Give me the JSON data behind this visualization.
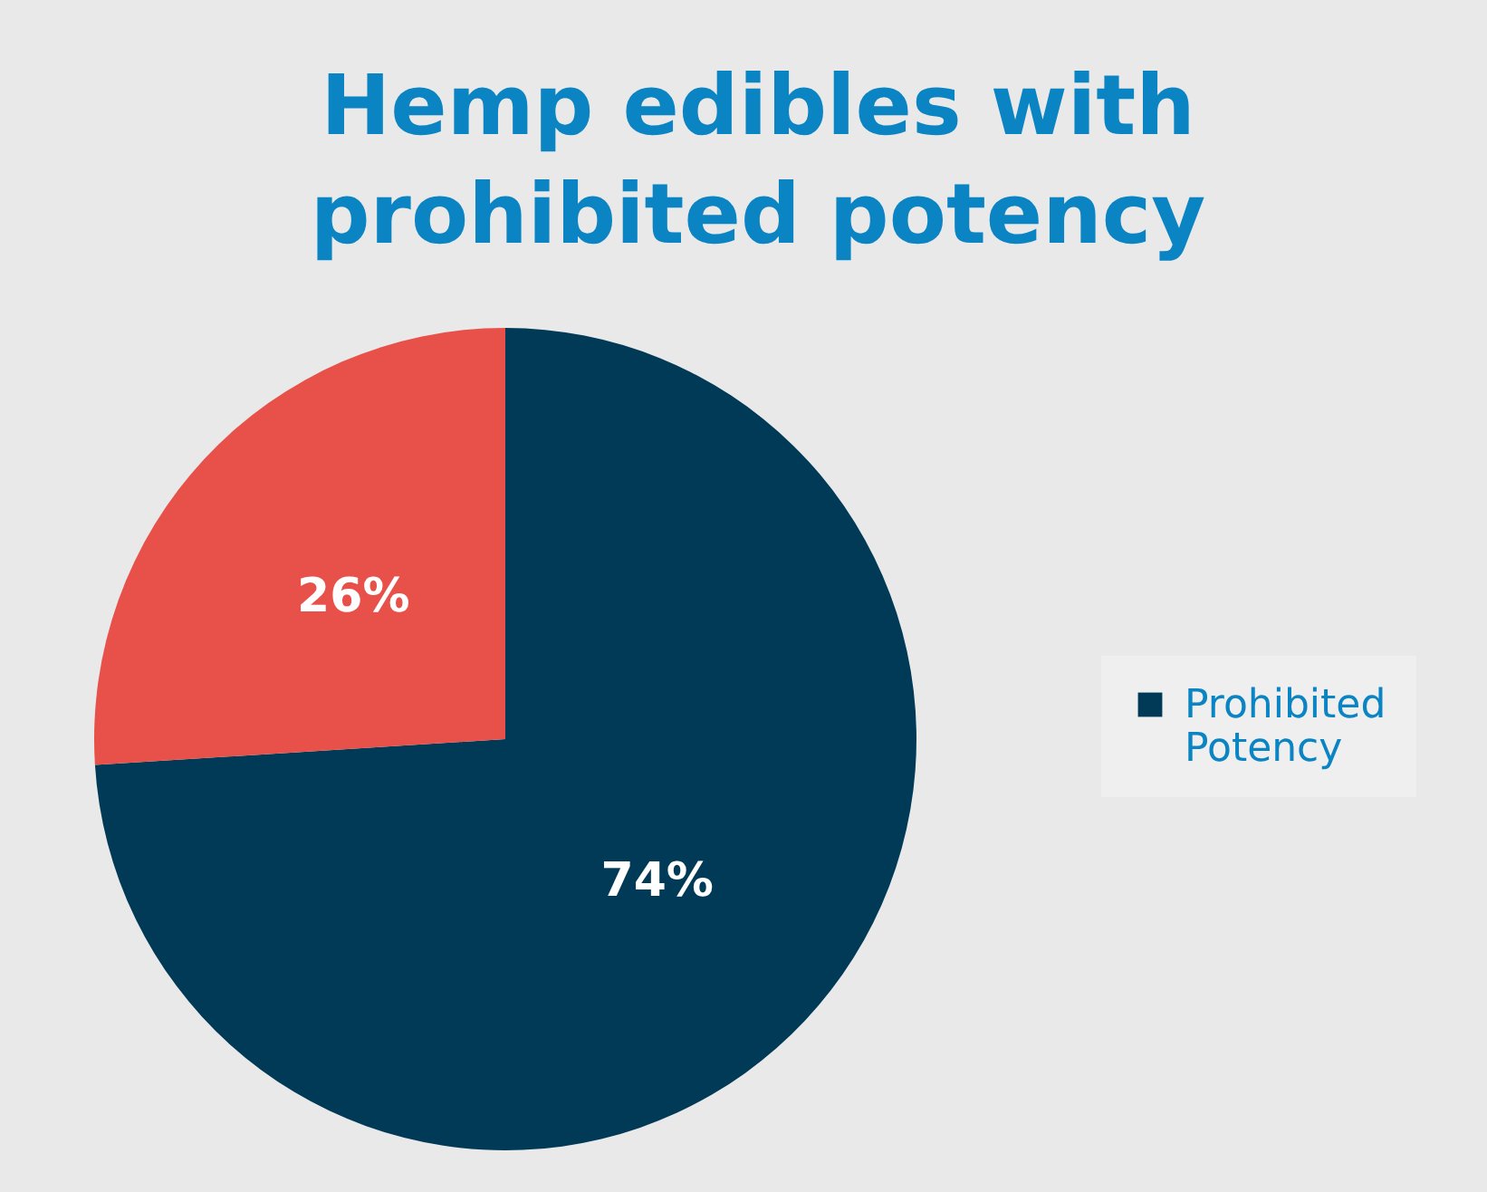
{
  "chart_data": {
    "type": "pie",
    "title": "Hemp edibles with prohibited potency",
    "categories": [
      "Prohibited Potency",
      null
    ],
    "values": [
      74,
      26
    ],
    "colors": [
      "#003a57",
      "#e8504a"
    ],
    "value_labels": [
      "74%",
      "26%"
    ],
    "legend": "right"
  }
}
